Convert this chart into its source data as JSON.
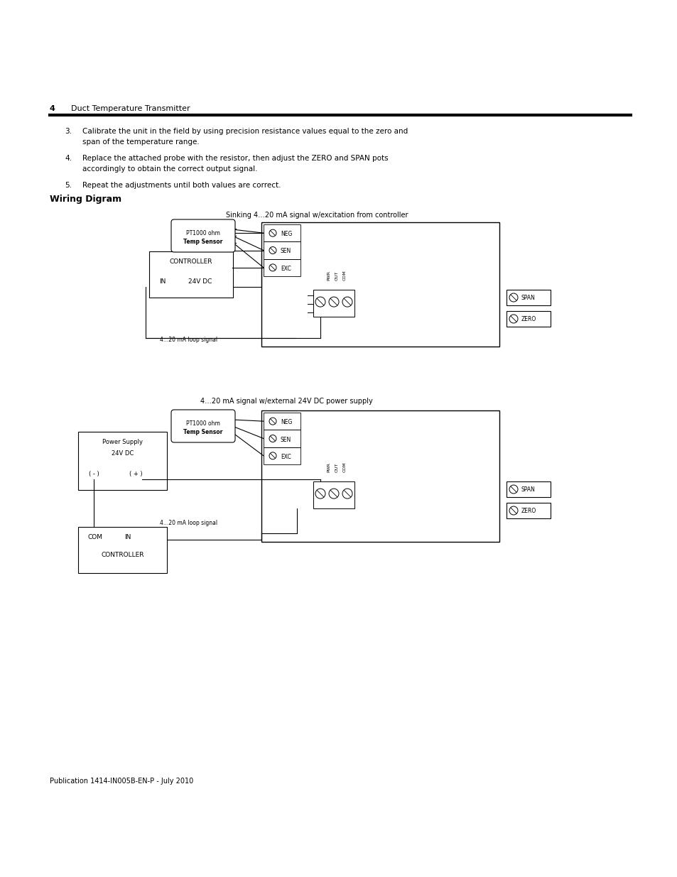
{
  "page_number": "4",
  "page_title": "Duct Temperature Transmitter",
  "section_title": "Wiring Digram",
  "diagram1_caption": "Sinking 4…20 mA signal w/excitation from controller",
  "diagram2_caption": "4…20 mA signal w/external 24V DC power supply",
  "footer_text": "Publication 1414-IN005B-EN-P - July 2010",
  "bg_color": "#ffffff",
  "text_color": "#000000",
  "item3_line1": "Calibrate the unit in the field by using precision resistance values equal to the zero and",
  "item3_line2": "span of the temperature range.",
  "item4_line1": "Replace the attached probe with the resistor, then adjust the ZERO and SPAN pots",
  "item4_line2": "accordingly to obtain the correct output signal.",
  "item5_line1": "Repeat the adjustments until both values are correct."
}
